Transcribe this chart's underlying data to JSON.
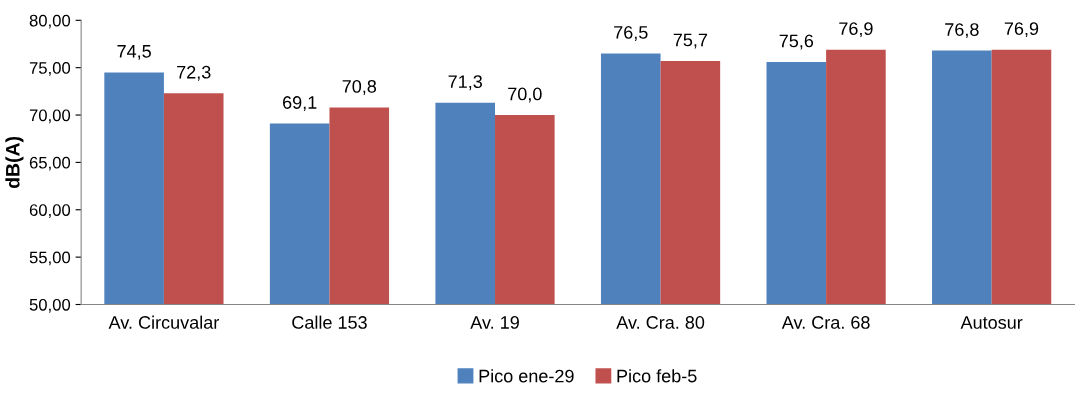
{
  "chart_data": {
    "type": "bar",
    "ylabel": "dB(A)",
    "categories": [
      "Av. Circuvalar",
      "Calle 153",
      "Av. 19",
      "Av. Cra. 80",
      "Av. Cra. 68",
      "Autosur"
    ],
    "series": [
      {
        "name": "Pico ene-29",
        "color": "#4f81bd",
        "values": [
          74.5,
          69.1,
          71.3,
          76.5,
          75.6,
          76.8
        ],
        "value_labels": [
          "74,5",
          "69,1",
          "71,3",
          "76,5",
          "75,6",
          "76,8"
        ]
      },
      {
        "name": "Pico feb-5",
        "color": "#c0504d",
        "values": [
          72.3,
          70.8,
          70.0,
          75.7,
          76.9,
          76.9
        ],
        "value_labels": [
          "72,3",
          "70,8",
          "70,0",
          "75,7",
          "76,9",
          "76,9"
        ]
      }
    ],
    "ylim": [
      50,
      80
    ],
    "yticks": [
      {
        "value": 50,
        "label": "50,00"
      },
      {
        "value": 55,
        "label": "55,00"
      },
      {
        "value": 60,
        "label": "60,00"
      },
      {
        "value": 65,
        "label": "65,00"
      },
      {
        "value": 70,
        "label": "70,00"
      },
      {
        "value": 75,
        "label": "75,00"
      },
      {
        "value": 80,
        "label": "80,00"
      }
    ],
    "grid": false,
    "legend": "bottom"
  }
}
